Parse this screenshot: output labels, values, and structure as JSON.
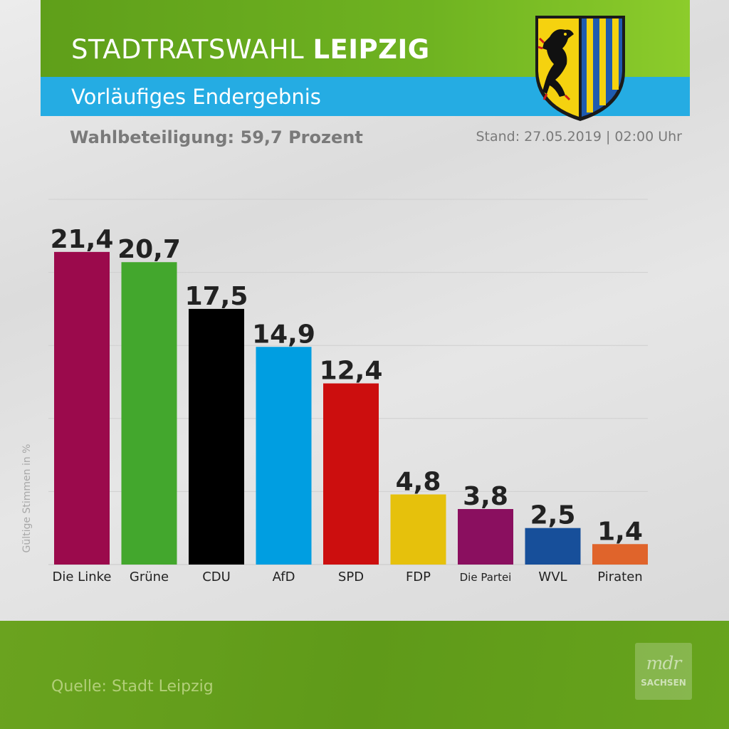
{
  "header": {
    "title_light": "STADTRATSWAHL",
    "title_bold": "LEIPZIG",
    "subtitle": "Vorläufiges Endergebnis",
    "turnout": "Wahlbeteiligung: 59,7 Prozent",
    "stand": "Stand: 27.05.2019 | 02:00 Uhr"
  },
  "footer": {
    "source": "Quelle: Stadt Leipzig",
    "logo_top": "mdr",
    "logo_bottom": "SACHSEN"
  },
  "icons": {
    "coat_of_arms": "leipzig-coat-of-arms-icon"
  },
  "chart_data": {
    "type": "bar",
    "title": "STADTRATSWAHL LEIPZIG",
    "subtitle": "Vorläufiges Endergebnis",
    "ylabel": "Gültige Stimmen in %",
    "xlabel": "",
    "ylim": [
      0,
      25
    ],
    "grid": true,
    "categories": [
      "Die Linke",
      "Grüne",
      "CDU",
      "AfD",
      "SPD",
      "FDP",
      "Die Partei",
      "WVL",
      "Piraten"
    ],
    "values": [
      21.4,
      20.7,
      17.5,
      14.9,
      12.4,
      4.8,
      3.8,
      2.5,
      1.4
    ],
    "value_labels": [
      "21,4",
      "20,7",
      "17,5",
      "14,9",
      "12,4",
      "4,8",
      "3,8",
      "2,5",
      "1,4"
    ],
    "colors": [
      "#9b0a4c",
      "#43a72d",
      "#000000",
      "#009ee1",
      "#cc0e0e",
      "#e6c10c",
      "#8a0f5f",
      "#174f9a",
      "#e0642b"
    ]
  }
}
